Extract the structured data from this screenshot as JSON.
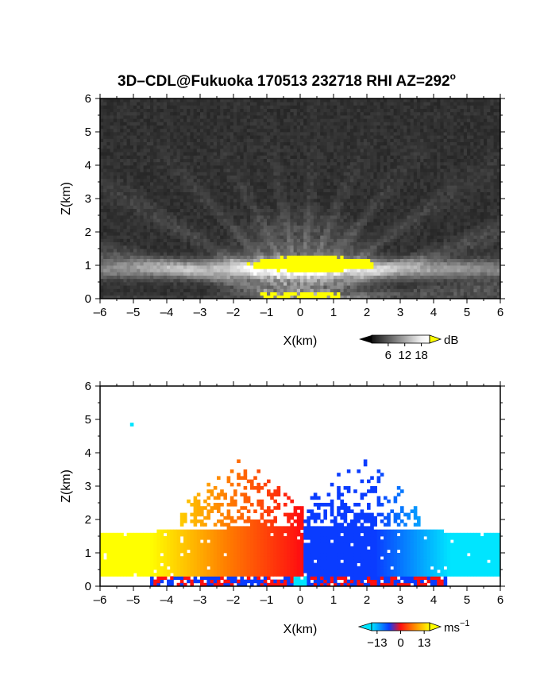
{
  "title": {
    "main": "3D–CDL@Fukuoka 170513 232718 RHI AZ=292",
    "degree": "o"
  },
  "chart_data": [
    {
      "type": "heatmap",
      "name": "reflectivity",
      "xlabel": "X(km)",
      "ylabel": "Z(km)",
      "xlim": [
        -6,
        6
      ],
      "ylim": [
        0,
        6
      ],
      "xticks": [
        "–6",
        "–5",
        "–4",
        "–3",
        "–2",
        "–1",
        "0",
        "1",
        "2",
        "3",
        "4",
        "5",
        "6"
      ],
      "yticks": [
        "0",
        "1",
        "2",
        "3",
        "4",
        "5",
        "6"
      ],
      "colorbar": {
        "unit": "dB",
        "ticks": [
          "6",
          "12",
          "18"
        ],
        "values": [
          6,
          12,
          18
        ],
        "range": [
          0,
          21
        ]
      },
      "colors": {
        "low": "#1e1e1e",
        "high": "#ffffff",
        "saturated": "#ffff00"
      },
      "boundary_layer_top_km": 0.9,
      "saturated_region": {
        "x": [
          -1.6,
          2.4
        ],
        "z": [
          0.8,
          1.3
        ]
      }
    },
    {
      "type": "heatmap",
      "name": "doppler-velocity",
      "xlabel": "X(km)",
      "ylabel": "Z(km)",
      "xlim": [
        -6,
        6
      ],
      "ylim": [
        0,
        6
      ],
      "xticks": [
        "–6",
        "–5",
        "–4",
        "–3",
        "–2",
        "–1",
        "0",
        "1",
        "2",
        "3",
        "4",
        "5",
        "6"
      ],
      "yticks": [
        "0",
        "1",
        "2",
        "3",
        "4",
        "5",
        "6"
      ],
      "colorbar": {
        "unit": "ms",
        "unit_exp": "−1",
        "ticks": [
          "−13",
          "0",
          "13"
        ],
        "values": [
          -13,
          0,
          13
        ],
        "range": [
          -16,
          16
        ]
      },
      "colors": {
        "negative": "#0a3cff",
        "negative_far": "#00e5ff",
        "zero": "#ff1010",
        "positive_near": "#ff8000",
        "positive_far": "#ffff00"
      },
      "data_extent": {
        "x": [
          -6,
          6
        ],
        "z": [
          0.1,
          4.0
        ]
      },
      "isolated_point": {
        "x": -5.1,
        "z": 4.9
      }
    }
  ]
}
